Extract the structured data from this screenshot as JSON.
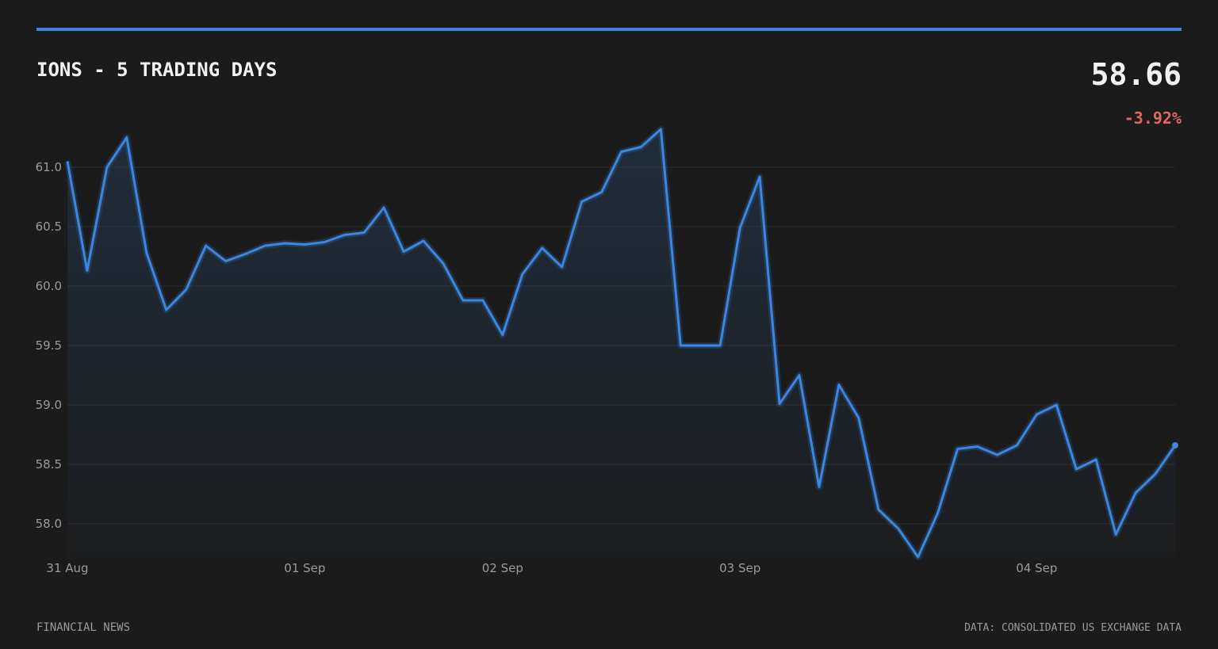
{
  "chart_data": {
    "type": "line",
    "title": "IONS - 5 TRADING DAYS",
    "last_price": 58.66,
    "change": {
      "value": -3.92,
      "label": "-3.92%"
    },
    "brand": "FINANCIAL NEWS",
    "source": "DATA: CONSOLIDATED US EXCHANGE DATA",
    "color": "#3a86e0",
    "grid": true,
    "categories": [
      "31 Aug",
      null,
      null,
      null,
      null,
      null,
      null,
      null,
      null,
      null,
      null,
      null,
      "01 Sep",
      null,
      null,
      null,
      null,
      null,
      null,
      null,
      null,
      null,
      "02 Sep",
      null,
      null,
      null,
      null,
      null,
      null,
      null,
      null,
      null,
      null,
      null,
      "03 Sep",
      null,
      null,
      null,
      null,
      null,
      null,
      null,
      null,
      null,
      null,
      null,
      null,
      null,
      null,
      "04 Sep",
      null,
      null,
      null,
      null,
      null,
      null,
      null
    ],
    "values": [
      61.05,
      60.13,
      61.0,
      61.25,
      60.28,
      59.8,
      59.97,
      60.34,
      60.21,
      60.27,
      60.34,
      60.36,
      60.35,
      60.37,
      60.43,
      60.45,
      60.66,
      60.29,
      60.38,
      60.19,
      59.88,
      59.88,
      59.59,
      60.1,
      60.32,
      60.16,
      60.71,
      60.79,
      61.13,
      61.17,
      61.32,
      59.5,
      59.5,
      59.5,
      60.49,
      60.92,
      59.01,
      59.25,
      58.31,
      59.17,
      58.89,
      58.12,
      57.96,
      57.72,
      58.09,
      58.63,
      58.65,
      58.58,
      58.66,
      58.92,
      59.0,
      58.46,
      58.54,
      57.91,
      58.26,
      58.42,
      58.66
    ],
    "ylim": [
      57.7,
      61.4
    ],
    "yticks": [
      {
        "value": 58,
        "label": "58.0"
      },
      {
        "value": 58.5,
        "label": "58.5"
      },
      {
        "value": 59,
        "label": "59.0"
      },
      {
        "value": 59.5,
        "label": "59.5"
      },
      {
        "value": 60,
        "label": "60.0"
      },
      {
        "value": 60.5,
        "label": "60.5"
      },
      {
        "value": 61,
        "label": "61.0"
      }
    ]
  }
}
